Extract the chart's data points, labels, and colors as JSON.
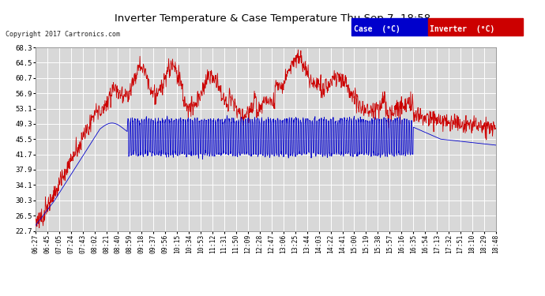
{
  "title": "Inverter Temperature & Case Temperature Thu Sep 7  18:58",
  "copyright": "Copyright 2017 Cartronics.com",
  "legend_labels": [
    "Case  (°C)",
    "Inverter  (°C)"
  ],
  "yticks": [
    22.7,
    26.5,
    30.3,
    34.1,
    37.9,
    41.7,
    45.5,
    49.3,
    53.1,
    56.9,
    60.7,
    64.5,
    68.3
  ],
  "xtick_labels": [
    "06:27",
    "06:45",
    "07:05",
    "07:24",
    "07:43",
    "08:02",
    "08:21",
    "08:40",
    "08:59",
    "09:18",
    "09:37",
    "09:56",
    "10:15",
    "10:34",
    "10:53",
    "11:12",
    "11:31",
    "11:50",
    "12:09",
    "12:28",
    "12:47",
    "13:06",
    "13:25",
    "13:44",
    "14:03",
    "14:22",
    "14:41",
    "15:00",
    "15:19",
    "15:38",
    "15:57",
    "16:16",
    "16:35",
    "16:54",
    "17:13",
    "17:32",
    "17:51",
    "18:10",
    "18:29",
    "18:48"
  ],
  "ymin": 22.7,
  "ymax": 68.3,
  "bg_color": "#ffffff",
  "plot_bg_color": "#d8d8d8",
  "grid_color": "#ffffff",
  "case_color": "#0000cc",
  "inverter_color": "#cc0000",
  "title_fontsize": 10,
  "copyright_fontsize": 6.5
}
